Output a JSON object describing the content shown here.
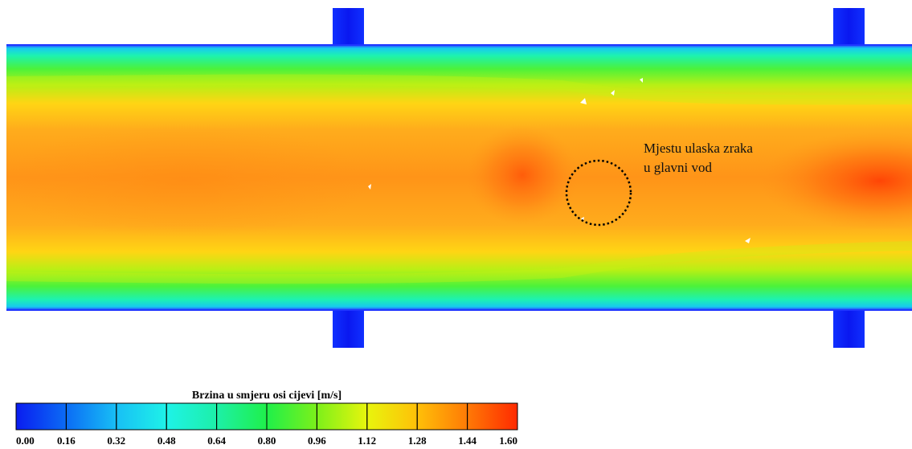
{
  "figure": {
    "annotation": {
      "line1": "Mjestu ulaska zraka",
      "line2": "u glavni vod"
    },
    "legend": {
      "title": "Brzina u smjeru osi cijevi [m/s]",
      "ticks": [
        "0.00",
        "0.16",
        "0.32",
        "0.48",
        "0.64",
        "0.80",
        "0.96",
        "1.12",
        "1.28",
        "1.44",
        "1.60"
      ],
      "colors": [
        "#0a1cf0",
        "#0b6cf5",
        "#18bff5",
        "#1ef2e8",
        "#1df0a8",
        "#1ff04a",
        "#7cf01a",
        "#e8f50d",
        "#ffc008",
        "#ff7a06",
        "#ff2a00"
      ],
      "range": [
        0.0,
        1.6
      ]
    }
  }
}
